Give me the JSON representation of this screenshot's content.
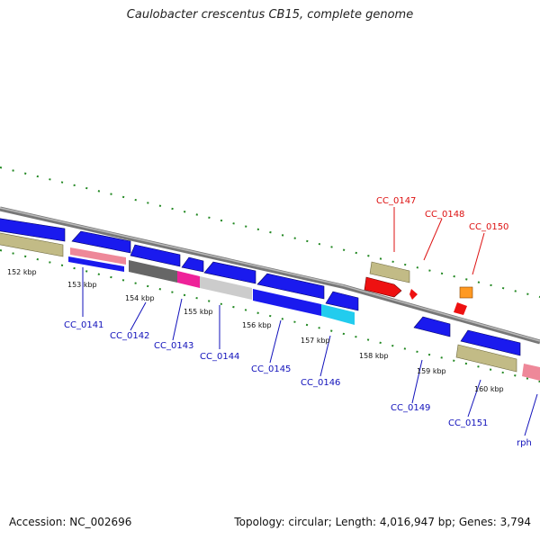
{
  "title": "Caulobacter crescentus CB15, complete genome",
  "footer": {
    "accession": "Accession: NC_002696",
    "summary": "Topology: circular; Length: 4,016,947 bp; Genes: 3,794"
  },
  "colors": {
    "forward_label": "#dd1111",
    "reverse_label": "#1111bb",
    "backbone": "#888888",
    "tick": "#228822",
    "blue_gene": "#1a1aee",
    "red_gene": "#ee1111",
    "orange_gene": "#ff9922",
    "khaki_rna": "#c2bb86",
    "pink": "#ee88aa",
    "magenta": "#ee2299",
    "cyan": "#22ccee",
    "dark_gray": "#666666",
    "light_gray": "#cccccc"
  },
  "ticks": [
    "152 kbp",
    "153 kbp",
    "154 kbp",
    "155 kbp",
    "156 kbp",
    "157 kbp",
    "158 kbp",
    "159 kbp",
    "160 kbp"
  ],
  "forward_labels": [
    "CC_0147",
    "CC_0148",
    "CC_0150"
  ],
  "reverse_labels": [
    "CC_0141",
    "CC_0142",
    "CC_0143",
    "CC_0144",
    "CC_0145",
    "CC_0146",
    "CC_0149",
    "CC_0151",
    "rph"
  ]
}
